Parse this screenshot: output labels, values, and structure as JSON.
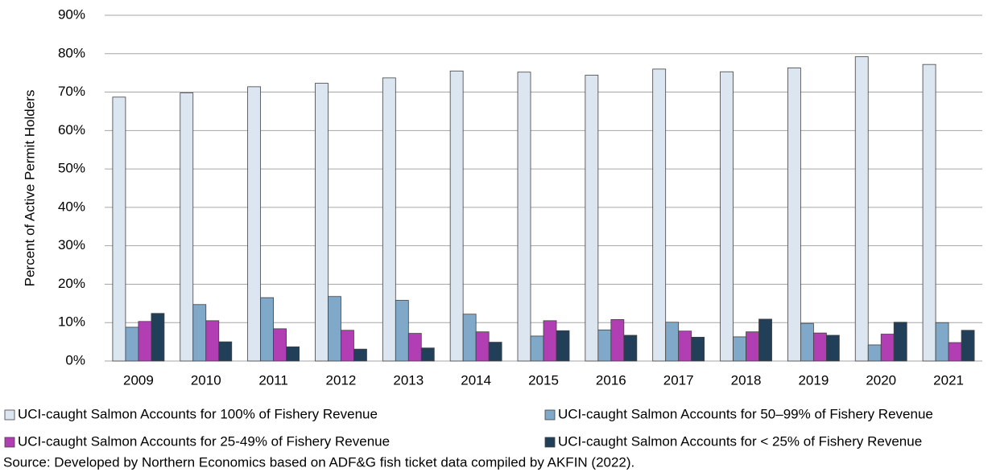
{
  "chart_data": {
    "type": "bar",
    "y_label": "Percent of Active Permit Holders",
    "categories": [
      "2009",
      "2010",
      "2011",
      "2012",
      "2013",
      "2014",
      "2015",
      "2016",
      "2017",
      "2018",
      "2019",
      "2020",
      "2021"
    ],
    "series": [
      {
        "name": "UCI-caught Salmon Accounts for 100% of Fishery Revenue",
        "color": "#dce6f1",
        "values": [
          68.7,
          69.8,
          71.4,
          72.3,
          73.7,
          75.5,
          75.2,
          74.4,
          76.0,
          75.3,
          76.3,
          79.2,
          77.2
        ]
      },
      {
        "name": "UCI-caught Salmon Accounts for 50–99% of Fishery Revenue",
        "color": "#7fa8c9",
        "values": [
          8.8,
          14.7,
          16.5,
          16.8,
          15.8,
          12.2,
          6.5,
          8.1,
          10.1,
          6.3,
          9.8,
          4.2,
          10.0
        ]
      },
      {
        "name": "UCI-caught Salmon Accounts for 25-49% of Fishery Revenue",
        "color": "#b13fb3",
        "values": [
          10.3,
          10.5,
          8.4,
          8.0,
          7.2,
          7.6,
          10.5,
          10.8,
          7.8,
          7.6,
          7.3,
          7.0,
          4.8
        ]
      },
      {
        "name": "UCI-caught Salmon Accounts for < 25% of Fishery Revenue",
        "color": "#213f58",
        "values": [
          12.4,
          5.0,
          3.7,
          3.1,
          3.4,
          4.9,
          7.9,
          6.7,
          6.2,
          10.9,
          6.7,
          10.1,
          8.0
        ]
      }
    ],
    "ylim": [
      0,
      90
    ],
    "yticks": [
      {
        "value": 0,
        "label": "0%"
      },
      {
        "value": 10,
        "label": "10%"
      },
      {
        "value": 20,
        "label": "20%"
      },
      {
        "value": 30,
        "label": "30%"
      },
      {
        "value": 40,
        "label": "40%"
      },
      {
        "value": 50,
        "label": "50%"
      },
      {
        "value": 60,
        "label": "60%"
      },
      {
        "value": 70,
        "label": "70%"
      },
      {
        "value": 80,
        "label": "80%"
      },
      {
        "value": 90,
        "label": "90%"
      }
    ],
    "grid": true,
    "source": "Source: Developed by Northern Economics based on ADF&G fish ticket data compiled by AKFIN (2022)."
  }
}
